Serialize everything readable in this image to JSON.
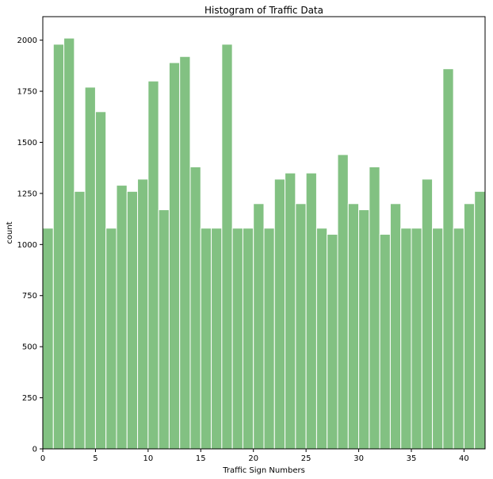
{
  "chart_data": {
    "type": "bar",
    "title": "Histogram of Traffic Data",
    "xlabel": "Traffic Sign Numbers",
    "ylabel": "count",
    "categories": [
      0,
      1,
      2,
      3,
      4,
      5,
      6,
      7,
      8,
      9,
      10,
      11,
      12,
      13,
      14,
      15,
      16,
      17,
      18,
      19,
      20,
      21,
      22,
      23,
      24,
      25,
      26,
      27,
      28,
      29,
      30,
      31,
      32,
      33,
      34,
      35,
      36,
      37,
      38,
      39,
      40,
      41
    ],
    "values": [
      1080,
      1980,
      2010,
      1260,
      1770,
      1650,
      1080,
      1290,
      1260,
      1320,
      1800,
      1170,
      1890,
      1920,
      1380,
      1080,
      1080,
      1980,
      1080,
      1080,
      1200,
      1080,
      1320,
      1350,
      1200,
      1350,
      1080,
      1050,
      1440,
      1200,
      1170,
      1380,
      1050,
      1200,
      1080,
      1080,
      1320,
      1080,
      1860,
      1080,
      1200,
      1260
    ],
    "xlim": [
      0,
      42
    ],
    "ylim": [
      0,
      2115
    ],
    "xticks": [
      0,
      5,
      10,
      15,
      20,
      25,
      30,
      35,
      40
    ],
    "yticks": [
      0,
      250,
      500,
      750,
      1000,
      1250,
      1500,
      1750,
      2000
    ],
    "grid": false,
    "colors": {
      "bar": "#82c182",
      "bar_edge": "#ffffff",
      "axis": "#000000"
    }
  }
}
